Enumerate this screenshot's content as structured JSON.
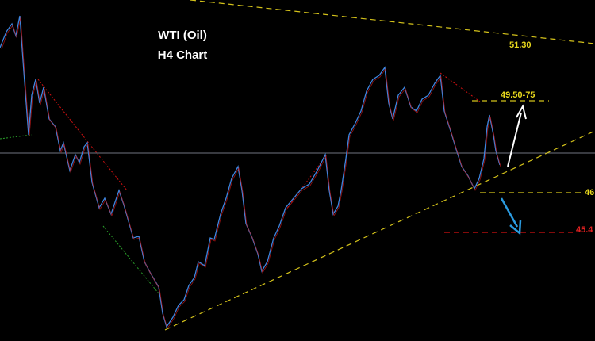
{
  "header": {
    "title": "WTI (Oil)",
    "subtitle": "H4 Chart"
  },
  "levels": {
    "resistance_top": "51.30",
    "target_zone": "49.50-75",
    "support": "46",
    "lower_support": "45.4"
  }
}
